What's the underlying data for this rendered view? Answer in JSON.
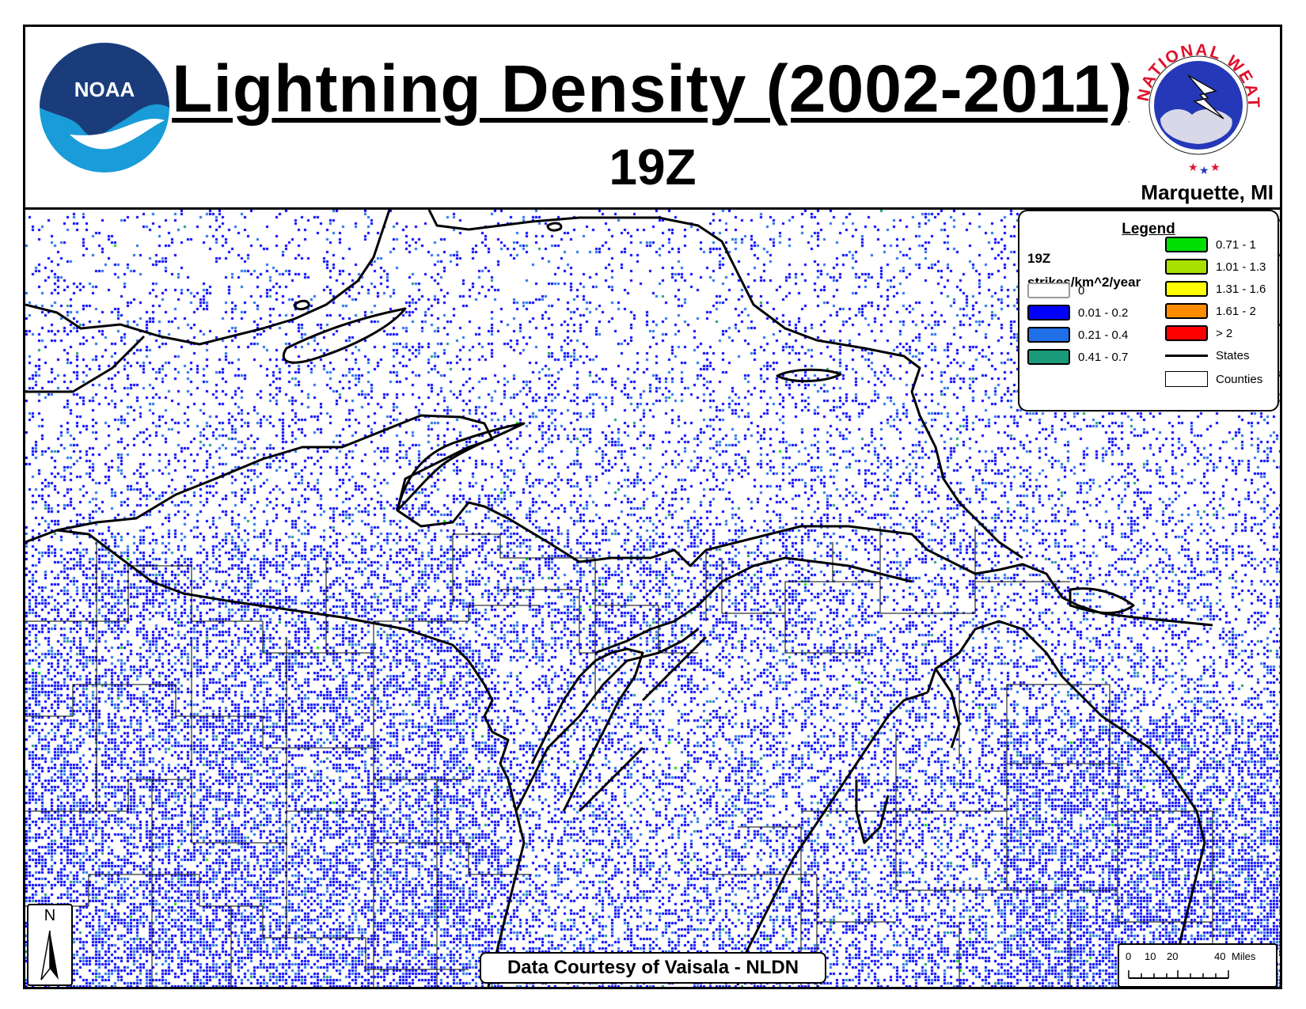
{
  "header": {
    "title": "Lightning Density (2002-2011)",
    "subtitle": "19Z",
    "office": "Marquette, MI",
    "noaa_logo_text": "NOAA",
    "nws_logo_text": "NATIONAL WEATHER SERVICE"
  },
  "legend": {
    "title": "Legend",
    "hour": "19Z",
    "units": "strikes/km^2/year",
    "classes": [
      {
        "label": "0",
        "color": "#ffffff"
      },
      {
        "label": "0.01 - 0.2",
        "color": "#0000ff"
      },
      {
        "label": "0.21 - 0.4",
        "color": "#1f6fe8"
      },
      {
        "label": "0.41 - 0.7",
        "color": "#1a9a7a"
      },
      {
        "label": "0.71 - 1",
        "color": "#00e000"
      },
      {
        "label": "1.01 - 1.3",
        "color": "#a8e000"
      },
      {
        "label": "1.31 - 1.6",
        "color": "#ffff00"
      },
      {
        "label": "1.61 - 2",
        "color": "#ff8c00"
      },
      {
        "label": "> 2",
        "color": "#ff0000"
      }
    ],
    "states_label": "States",
    "counties_label": "Counties"
  },
  "credit": "Data Courtesy of Vaisala - NLDN",
  "north_arrow": "N",
  "scale_bar": {
    "ticks": [
      "0",
      "10",
      "20",
      "40"
    ],
    "unit": "Miles"
  }
}
